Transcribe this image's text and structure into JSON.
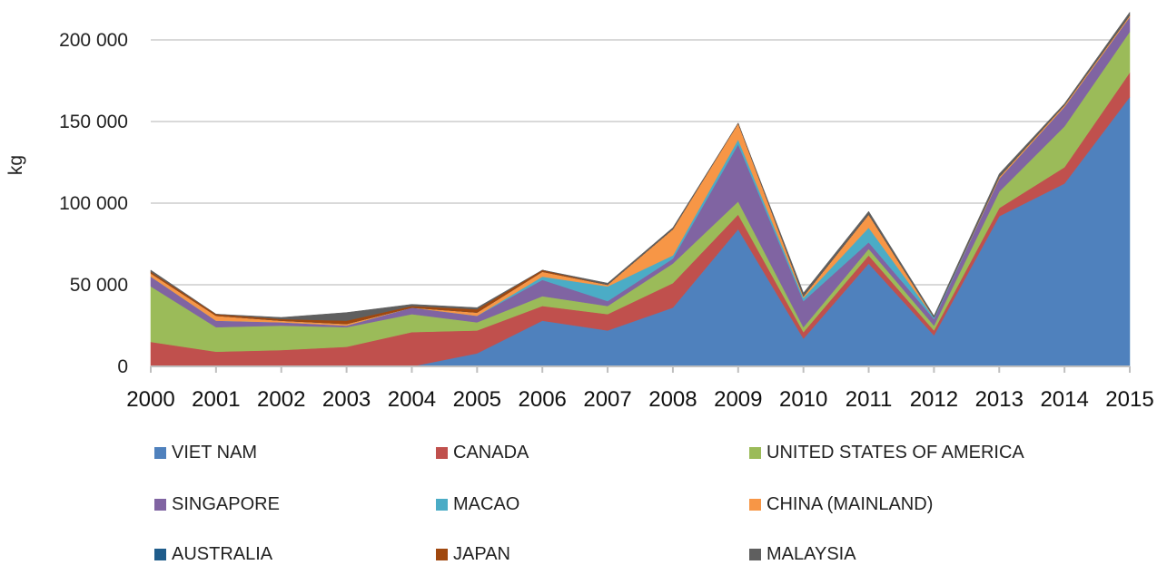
{
  "chart_data": {
    "type": "area",
    "stacked": true,
    "ylabel": "kg",
    "xlabel": "",
    "ylim": [
      0,
      220000
    ],
    "yticks": [
      0,
      50000,
      100000,
      150000,
      200000
    ],
    "ytick_labels": [
      "0",
      "50 000",
      "100 000",
      "150 000",
      "200 000"
    ],
    "x": [
      "2000",
      "2001",
      "2002",
      "2003",
      "2004",
      "2005",
      "2006",
      "2007",
      "2008",
      "2009",
      "2010",
      "2011",
      "2012",
      "2013",
      "2014",
      "2015"
    ],
    "grid": true,
    "legend_position": "bottom",
    "series": [
      {
        "name": "VIET NAM",
        "color": "#4f81bd",
        "values": [
          0,
          0,
          0,
          0,
          0,
          8000,
          28000,
          22000,
          36000,
          84000,
          17000,
          63000,
          19000,
          92000,
          112000,
          165000
        ]
      },
      {
        "name": "CANADA",
        "color": "#c0504d",
        "values": [
          15000,
          9000,
          10000,
          12000,
          21000,
          14000,
          9000,
          10000,
          15000,
          9000,
          4000,
          5000,
          3000,
          5000,
          10000,
          15000
        ]
      },
      {
        "name": "UNITED STATES OF AMERICA",
        "color": "#9bbb59",
        "values": [
          34000,
          15000,
          15000,
          12000,
          11000,
          5000,
          6000,
          5000,
          12000,
          8000,
          3000,
          4000,
          3000,
          10000,
          25000,
          25000
        ]
      },
      {
        "name": "SINGAPORE",
        "color": "#8064a2",
        "values": [
          6000,
          4000,
          2000,
          1000,
          4000,
          4000,
          10000,
          3000,
          3000,
          35000,
          16000,
          4000,
          4000,
          8000,
          12000,
          9000
        ]
      },
      {
        "name": "MACAO",
        "color": "#4bacc6",
        "values": [
          0,
          0,
          0,
          0,
          0,
          0,
          2000,
          9000,
          2000,
          3000,
          2000,
          9000,
          1000,
          0,
          0,
          0
        ]
      },
      {
        "name": "CHINA (MAINLAND)",
        "color": "#f79646",
        "values": [
          2000,
          3000,
          1000,
          1000,
          0,
          2000,
          3000,
          1000,
          16000,
          10000,
          1000,
          8000,
          0,
          1000,
          1000,
          1000
        ]
      },
      {
        "name": "AUSTRALIA",
        "color": "#1f5c8b",
        "values": [
          0,
          0,
          0,
          0,
          0,
          0,
          0,
          0,
          0,
          0,
          0,
          0,
          0,
          0,
          0,
          0
        ]
      },
      {
        "name": "JAPAN",
        "color": "#a0480f",
        "values": [
          1000,
          1000,
          1000,
          2000,
          1000,
          2000,
          1000,
          0,
          0,
          0,
          0,
          0,
          0,
          0,
          0,
          0
        ]
      },
      {
        "name": "MALAYSIA",
        "color": "#5f5f5f",
        "values": [
          1000,
          0,
          1000,
          5000,
          1000,
          1000,
          0,
          1000,
          1000,
          0,
          2000,
          2000,
          1000,
          2000,
          1000,
          2000
        ]
      }
    ]
  }
}
